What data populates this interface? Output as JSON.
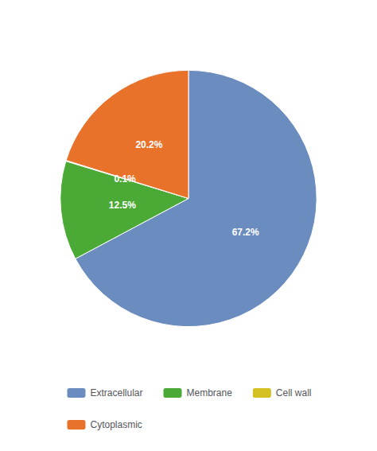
{
  "chart_data": {
    "type": "pie",
    "categories": [
      "Extracellular",
      "Membrane",
      "Cell wall",
      "Cytoplasmic"
    ],
    "values": [
      67.2,
      12.5,
      0.1,
      20.2
    ],
    "value_labels": [
      "67.2%",
      "12.5%",
      "0.1%",
      "20.2%"
    ],
    "colors": [
      "#6b8cbe",
      "#4aaa35",
      "#d4c020",
      "#e8722a"
    ],
    "data_labels": true,
    "legend": "bottom"
  }
}
